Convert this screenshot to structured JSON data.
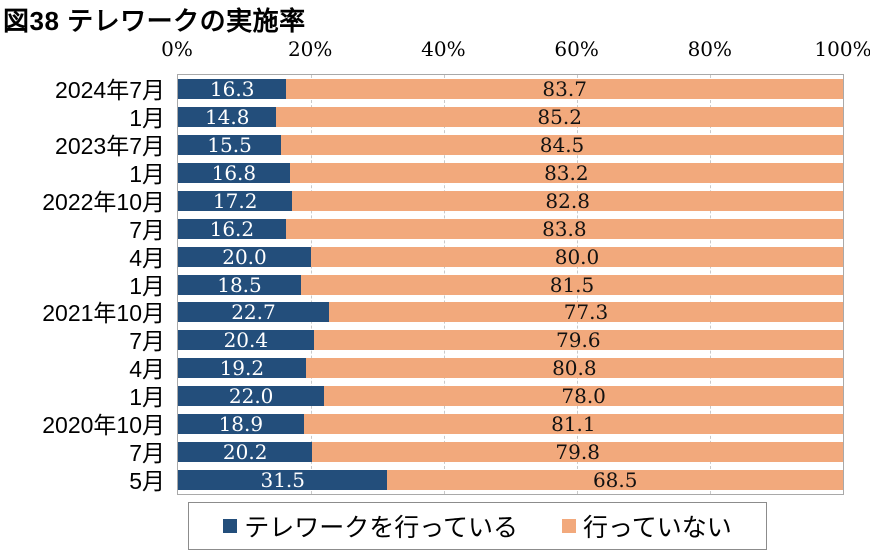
{
  "title": "図38 テレワークの実施率",
  "chart_data": {
    "type": "bar",
    "orientation": "horizontal",
    "stacked": true,
    "title": "図38 テレワークの実施率",
    "categories": [
      "2024年7月",
      "1月",
      "2023年7月",
      "1月",
      "2022年10月",
      "7月",
      "4月",
      "1月",
      "2021年10月",
      "7月",
      "4月",
      "1月",
      "2020年10月",
      "7月",
      "5月"
    ],
    "series": [
      {
        "name": "テレワークを行っている",
        "color": "#234e7b",
        "label_color": "#ffffff",
        "values": [
          16.3,
          14.8,
          15.5,
          16.8,
          17.2,
          16.2,
          20.0,
          18.5,
          22.7,
          20.4,
          19.2,
          22.0,
          18.9,
          20.2,
          31.5
        ],
        "labels": [
          "16.3",
          "14.8",
          "15.5",
          "16.8",
          "17.2",
          "16.2",
          "20.0",
          "18.5",
          "22.7",
          "20.4",
          "19.2",
          "22.0",
          "18.9",
          "20.2",
          "31.5"
        ]
      },
      {
        "name": "行っていない",
        "color": "#f2a97c",
        "label_color": "#111111",
        "values": [
          83.7,
          85.2,
          84.5,
          83.2,
          82.8,
          83.8,
          80.0,
          81.5,
          77.3,
          79.6,
          80.8,
          78.0,
          81.1,
          79.8,
          68.5
        ],
        "labels": [
          "83.7",
          "85.2",
          "84.5",
          "83.2",
          "82.8",
          "83.8",
          "80.0",
          "81.5",
          "77.3",
          "79.6",
          "80.8",
          "78.0",
          "81.1",
          "79.8",
          "68.5"
        ]
      }
    ],
    "x_ticks": [
      "0%",
      "20%",
      "40%",
      "60%",
      "80%",
      "100%"
    ],
    "xlim": [
      0,
      100
    ],
    "grid": "vertical-dashed-every-20",
    "legend_position": "bottom"
  },
  "style_colors": {
    "gridline": "#c9c9c9",
    "plot_border": "#a9a9a9",
    "legend_border": "#8c8c8c"
  }
}
